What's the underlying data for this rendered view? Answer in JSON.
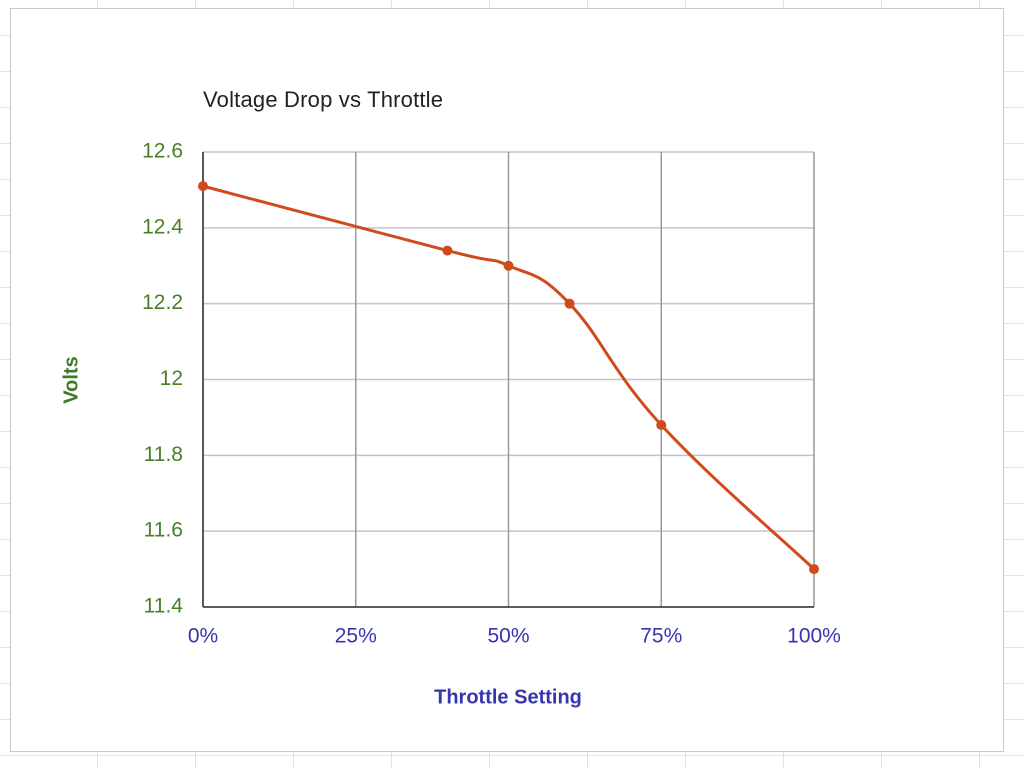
{
  "chart_data": {
    "type": "line",
    "title": "Voltage Drop vs Throttle",
    "x_label": "Throttle Setting",
    "y_label": "Volts",
    "x": [
      0,
      40,
      50,
      60,
      75,
      100
    ],
    "series": [
      {
        "name": "Volts",
        "color": "#d04a1e",
        "values": [
          12.51,
          12.34,
          12.3,
          12.2,
          11.88,
          11.5
        ]
      }
    ],
    "xlim": [
      0,
      100
    ],
    "xticks": [
      {
        "value": 0,
        "label": "0%"
      },
      {
        "value": 25,
        "label": "25%"
      },
      {
        "value": 50,
        "label": "50%"
      },
      {
        "value": 75,
        "label": "75%"
      },
      {
        "value": 100,
        "label": "100%"
      }
    ],
    "ylim": [
      11.4,
      12.6
    ],
    "yticks": [
      11.4,
      11.6,
      11.8,
      12,
      12.2,
      12.4,
      12.6
    ],
    "grid": true,
    "smooth": true
  }
}
